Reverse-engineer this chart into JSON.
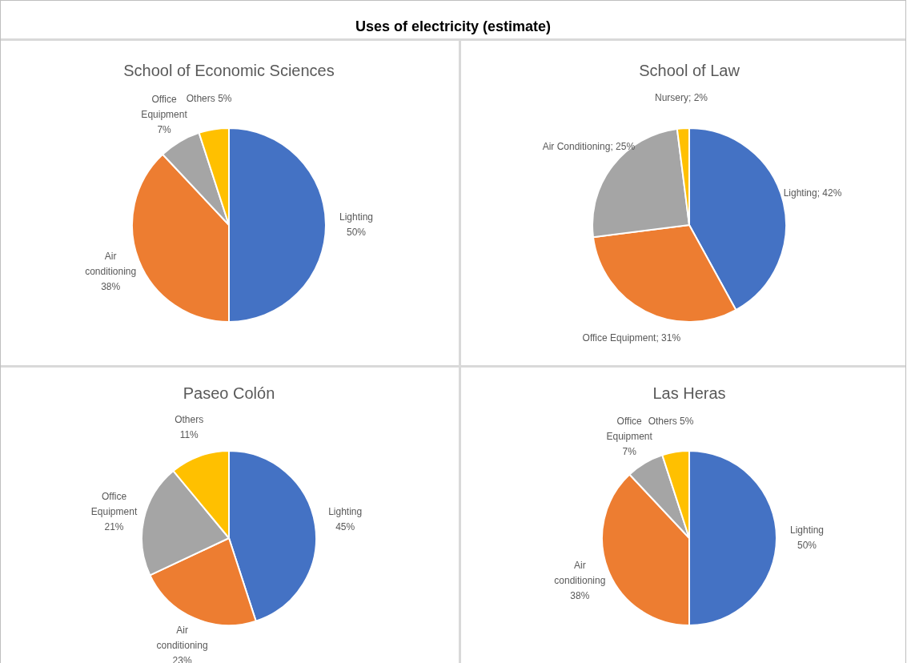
{
  "chart_data": [
    {
      "type": "other",
      "title": "Uses of electricity (estimate)"
    },
    {
      "type": "pie",
      "title": "School of Economic Sciences",
      "categories": [
        "Lighting",
        "Air conditioning",
        "Office Equipment",
        "Others"
      ],
      "values": [
        50,
        38,
        7,
        5
      ],
      "colors": [
        "#4472c4",
        "#ed7d31",
        "#a5a5a5",
        "#ffc000"
      ],
      "value_labels": [
        "50%",
        "38%",
        "7%",
        "5%"
      ]
    },
    {
      "type": "pie",
      "title": "School of Law",
      "categories": [
        "Lighting",
        "Office Equipment",
        "Air Conditioning",
        "Nursery"
      ],
      "values": [
        42,
        31,
        25,
        2
      ],
      "colors": [
        "#4472c4",
        "#ed7d31",
        "#a5a5a5",
        "#ffc000"
      ],
      "value_labels": [
        "42%",
        "31%",
        "25%",
        "2%"
      ]
    },
    {
      "type": "pie",
      "title": "Paseo Colón",
      "categories": [
        "Lighting",
        "Air conditioning",
        "Office Equipment",
        "Others"
      ],
      "values": [
        45,
        23,
        21,
        11
      ],
      "colors": [
        "#4472c4",
        "#ed7d31",
        "#a5a5a5",
        "#ffc000"
      ],
      "value_labels": [
        "45%",
        "23%",
        "21%",
        "11%"
      ]
    },
    {
      "type": "pie",
      "title": "Las Heras",
      "categories": [
        "Lighting",
        "Air conditioning",
        "Office Equipment",
        "Others"
      ],
      "values": [
        50,
        38,
        7,
        5
      ],
      "colors": [
        "#4472c4",
        "#ed7d31",
        "#a5a5a5",
        "#ffc000"
      ],
      "value_labels": [
        "50%",
        "38%",
        "7%",
        "5%"
      ]
    }
  ]
}
